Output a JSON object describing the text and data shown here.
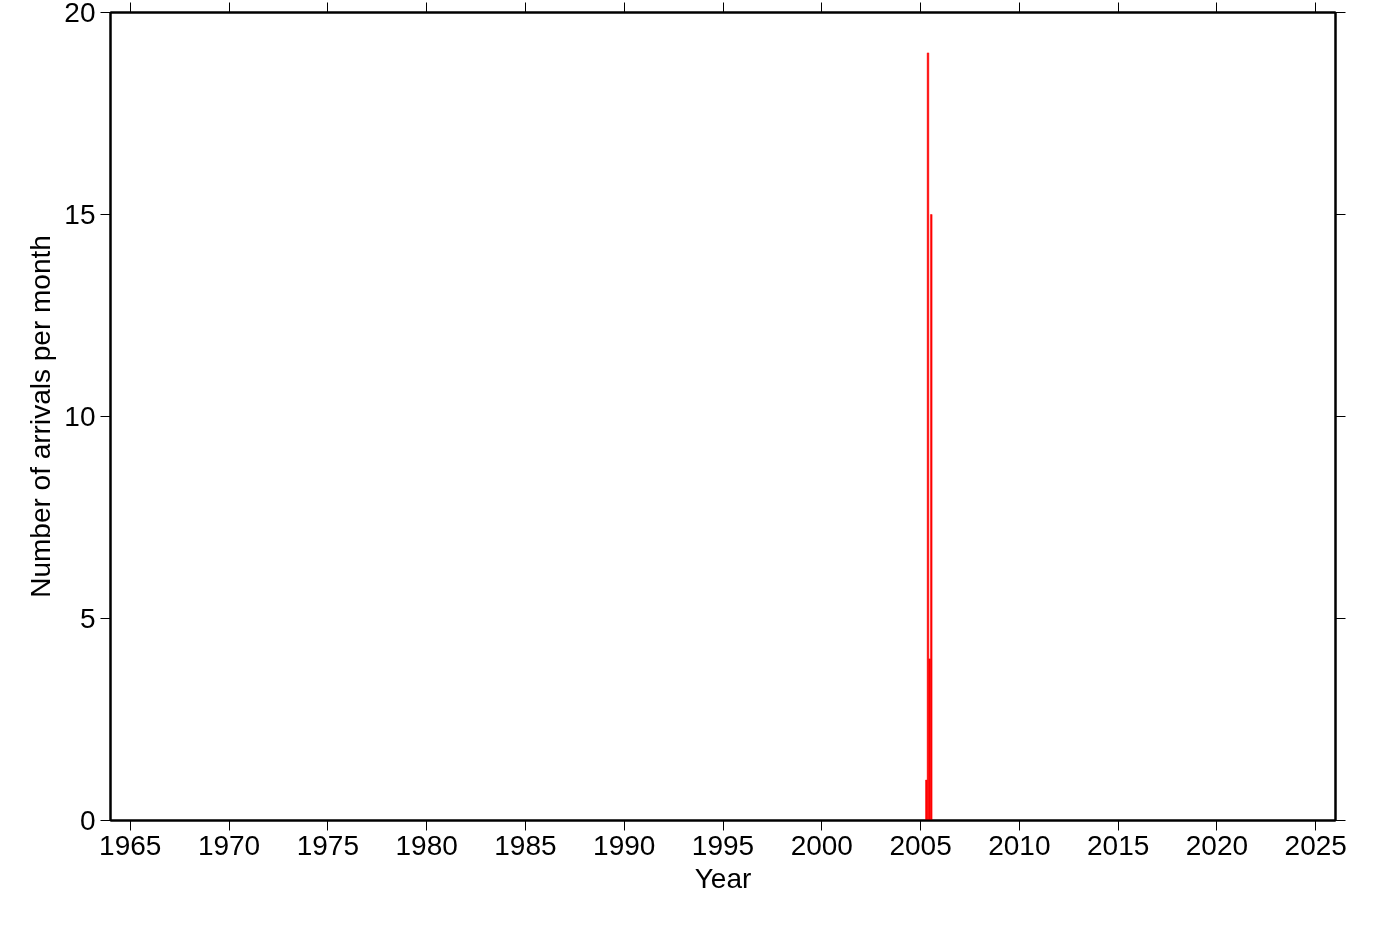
{
  "chart_data": {
    "type": "histogram",
    "xlabel": "Year",
    "ylabel": "Number of arrivals per month",
    "bins": [
      2005.25,
      2005.333,
      2005.417,
      2005.5,
      2005.583
    ],
    "values": [
      1,
      19,
      4,
      15
    ],
    "color": "#ff0000",
    "xlim": [
      1964,
      2026
    ],
    "xticks": [
      1965,
      1970,
      1975,
      1980,
      1985,
      1990,
      1995,
      2000,
      2005,
      2010,
      2015,
      2020,
      2025
    ],
    "ylim": [
      0,
      20
    ],
    "yticks": [
      0,
      5,
      10,
      15,
      20
    ],
    "grid": false
  }
}
